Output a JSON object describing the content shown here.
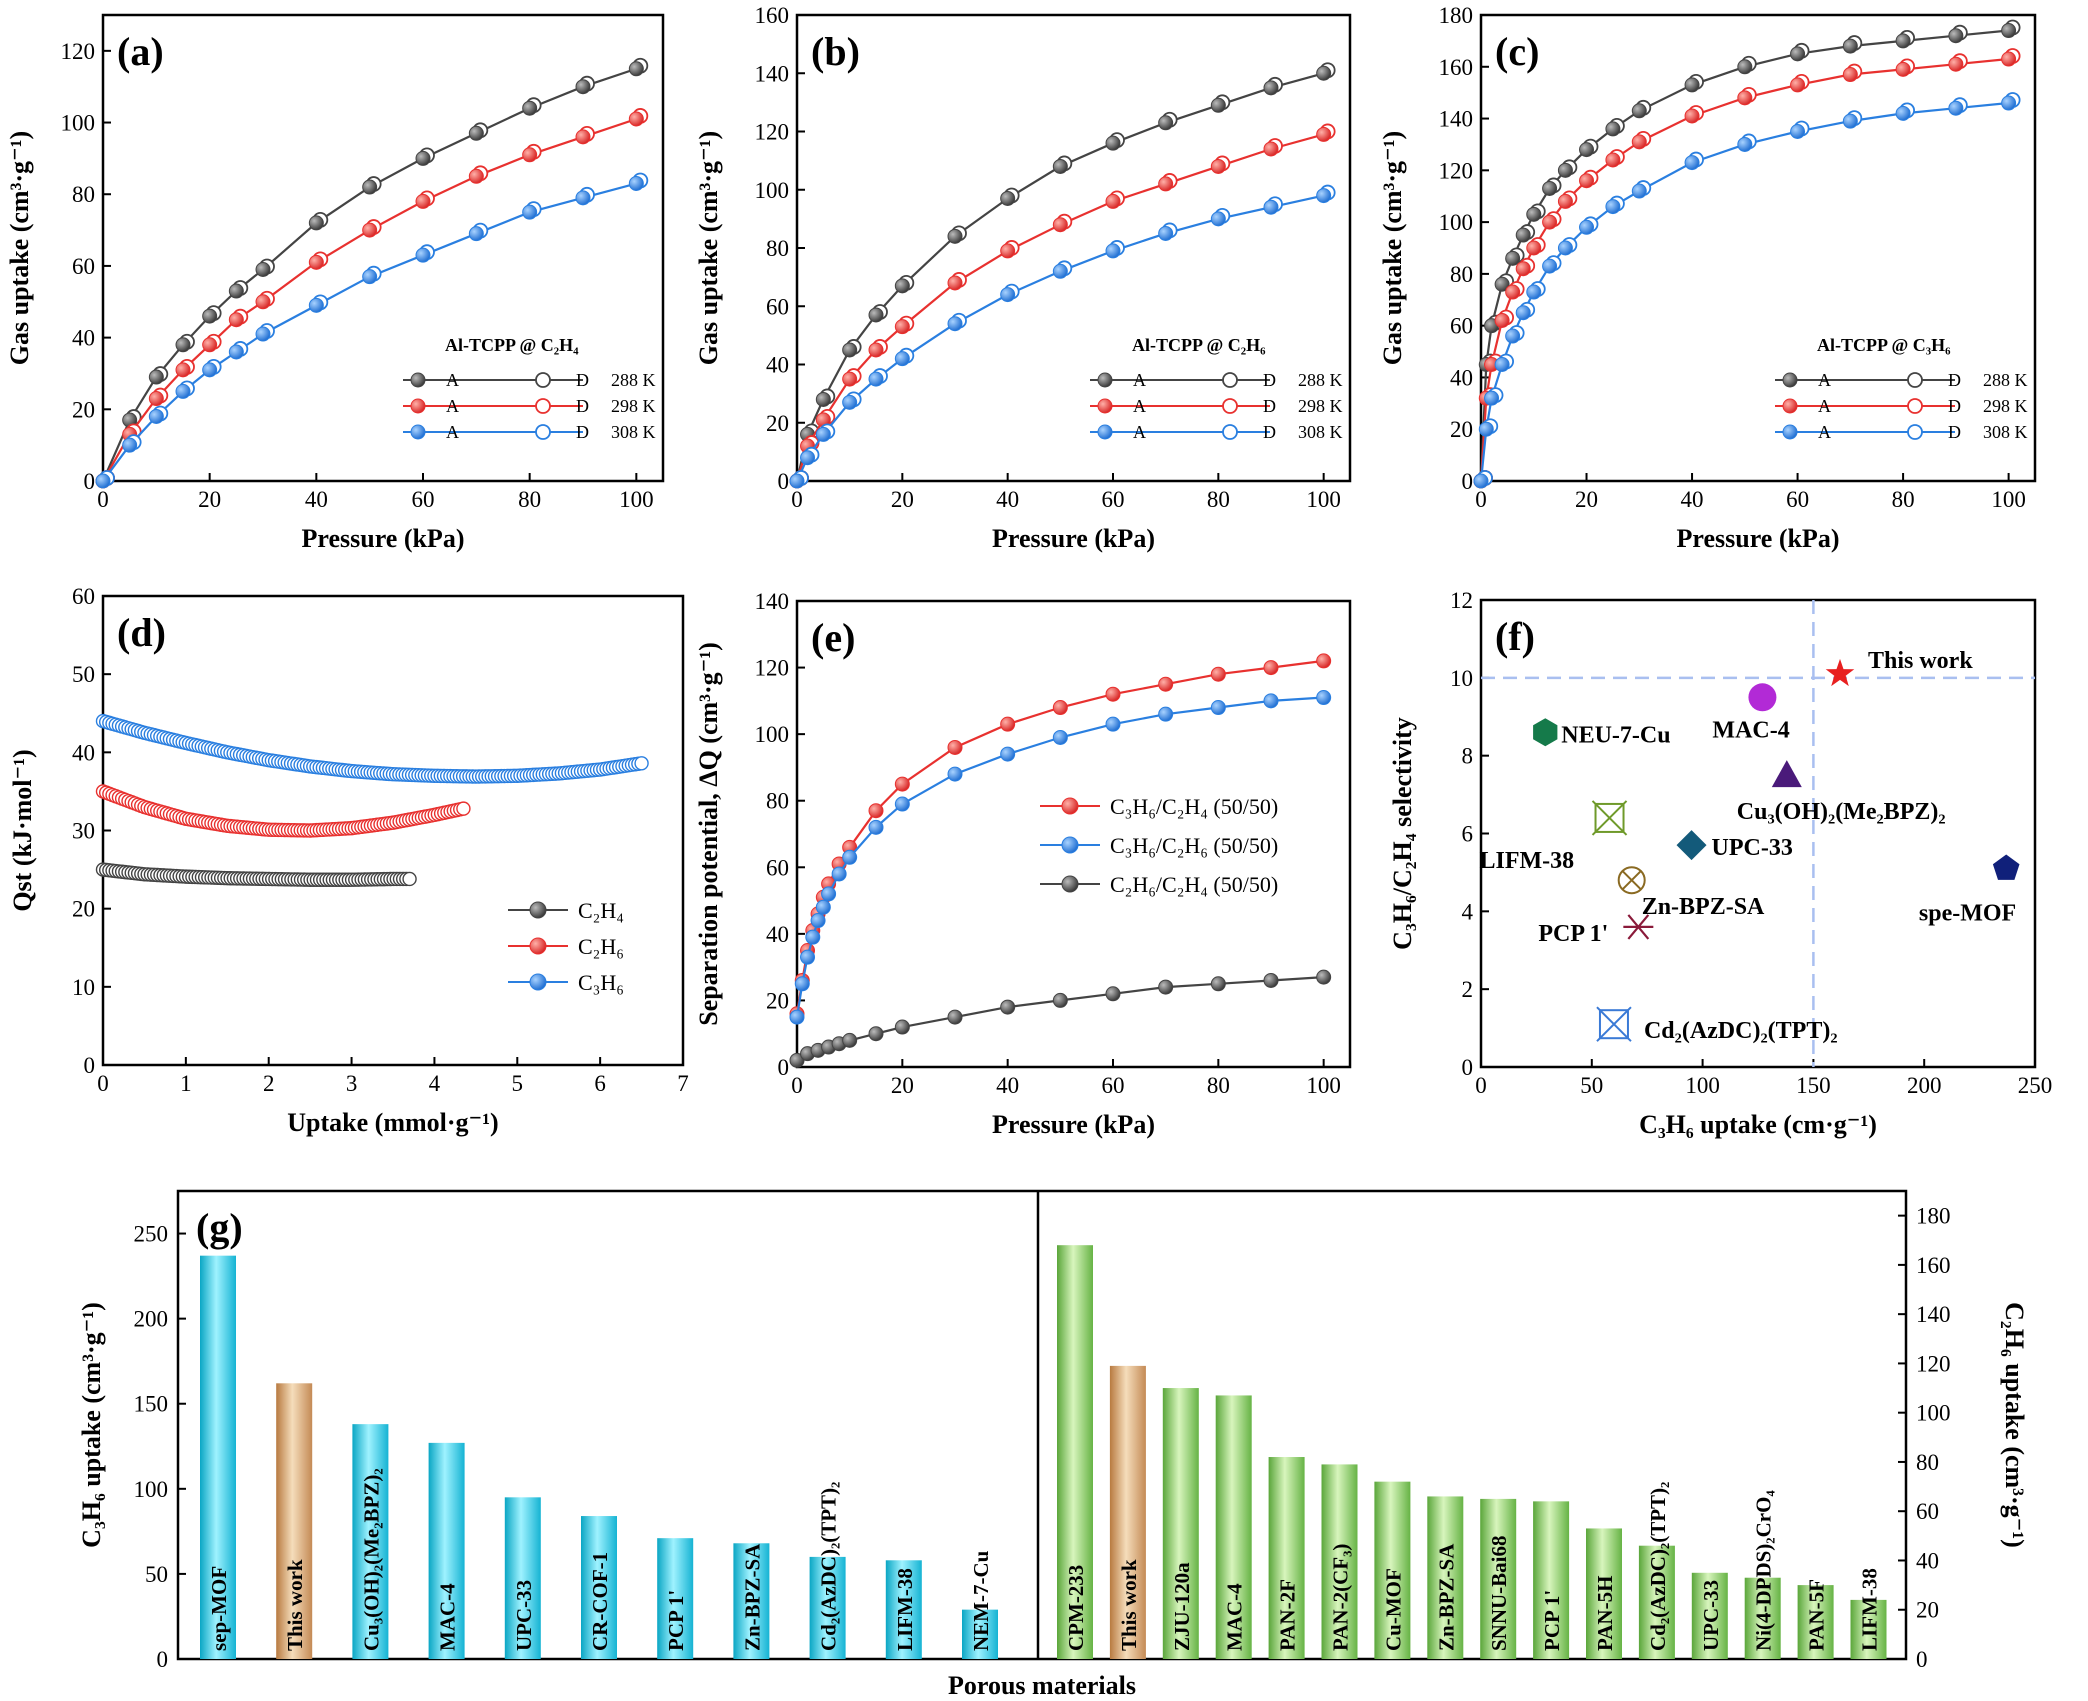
{
  "chart_data": [
    {
      "panel": "(a)",
      "type": "line",
      "xlabel": "Pressure (kPa)",
      "ylabel": "Gas uptake (cm³·g⁻¹)",
      "xlim": [
        0,
        105
      ],
      "ylim": [
        0,
        130
      ],
      "xticks": [
        0,
        20,
        40,
        60,
        80,
        100
      ],
      "yticks": [
        0,
        20,
        40,
        60,
        80,
        100,
        120
      ],
      "legend_title": "Al-TCPP @ C₂H₄",
      "legend_markers": [
        "A",
        "D"
      ],
      "series": [
        {
          "name": "288 K",
          "color": "#444444",
          "x": [
            0,
            5,
            10,
            15,
            20,
            25,
            30,
            40,
            50,
            60,
            70,
            80,
            90,
            100
          ],
          "y": [
            0,
            17,
            29,
            38,
            46,
            53,
            59,
            72,
            82,
            90,
            97,
            104,
            110,
            115
          ]
        },
        {
          "name": "298 K",
          "color": "#e8312f",
          "x": [
            0,
            5,
            10,
            15,
            20,
            25,
            30,
            40,
            50,
            60,
            70,
            80,
            90,
            100
          ],
          "y": [
            0,
            13,
            23,
            31,
            38,
            45,
            50,
            61,
            70,
            78,
            85,
            91,
            96,
            101
          ]
        },
        {
          "name": "308 K",
          "color": "#2a7fe0",
          "x": [
            0,
            5,
            10,
            15,
            20,
            25,
            30,
            40,
            50,
            60,
            70,
            80,
            90,
            100
          ],
          "y": [
            0,
            10,
            18,
            25,
            31,
            36,
            41,
            49,
            57,
            63,
            69,
            75,
            79,
            83
          ]
        }
      ]
    },
    {
      "panel": "(b)",
      "type": "line",
      "xlabel": "Pressure (kPa)",
      "ylabel": "Gas uptake (cm³·g⁻¹)",
      "xlim": [
        0,
        105
      ],
      "ylim": [
        0,
        160
      ],
      "xticks": [
        0,
        20,
        40,
        60,
        80,
        100
      ],
      "yticks": [
        0,
        20,
        40,
        60,
        80,
        100,
        120,
        140,
        160
      ],
      "legend_title": "Al-TCPP @ C₂H₆",
      "legend_markers": [
        "A",
        "D"
      ],
      "series": [
        {
          "name": "288 K",
          "color": "#444444",
          "x": [
            0,
            2,
            5,
            10,
            15,
            20,
            30,
            40,
            50,
            60,
            70,
            80,
            90,
            100
          ],
          "y": [
            0,
            16,
            28,
            45,
            57,
            67,
            84,
            97,
            108,
            116,
            123,
            129,
            135,
            140
          ]
        },
        {
          "name": "298 K",
          "color": "#e8312f",
          "x": [
            0,
            2,
            5,
            10,
            15,
            20,
            30,
            40,
            50,
            60,
            70,
            80,
            90,
            100
          ],
          "y": [
            0,
            12,
            21,
            35,
            45,
            53,
            68,
            79,
            88,
            96,
            102,
            108,
            114,
            119
          ]
        },
        {
          "name": "308 K",
          "color": "#2a7fe0",
          "x": [
            0,
            2,
            5,
            10,
            15,
            20,
            30,
            40,
            50,
            60,
            70,
            80,
            90,
            100
          ],
          "y": [
            0,
            8,
            16,
            27,
            35,
            42,
            54,
            64,
            72,
            79,
            85,
            90,
            94,
            98
          ]
        }
      ]
    },
    {
      "panel": "(c)",
      "type": "line",
      "xlabel": "Pressure (kPa)",
      "ylabel": "Gas uptake (cm³·g⁻¹)",
      "xlim": [
        0,
        105
      ],
      "ylim": [
        0,
        180
      ],
      "xticks": [
        0,
        20,
        40,
        60,
        80,
        100
      ],
      "yticks": [
        0,
        20,
        40,
        60,
        80,
        100,
        120,
        140,
        160,
        180
      ],
      "legend_title": "Al-TCPP @ C₃H₆",
      "legend_markers": [
        "A",
        "D"
      ],
      "series": [
        {
          "name": "288 K",
          "color": "#444444",
          "x": [
            0,
            1,
            2,
            4,
            6,
            8,
            10,
            13,
            16,
            20,
            25,
            30,
            40,
            50,
            60,
            70,
            80,
            90,
            100
          ],
          "y": [
            0,
            45,
            60,
            76,
            86,
            95,
            103,
            113,
            120,
            128,
            136,
            143,
            153,
            160,
            165,
            168,
            170,
            172,
            174
          ]
        },
        {
          "name": "298 K",
          "color": "#e8312f",
          "x": [
            0,
            1,
            2,
            4,
            6,
            8,
            10,
            13,
            16,
            20,
            25,
            30,
            40,
            50,
            60,
            70,
            80,
            90,
            100
          ],
          "y": [
            0,
            32,
            45,
            62,
            73,
            82,
            90,
            100,
            108,
            116,
            124,
            131,
            141,
            148,
            153,
            157,
            159,
            161,
            163
          ]
        },
        {
          "name": "308 K",
          "color": "#2a7fe0",
          "x": [
            0,
            1,
            2,
            4,
            6,
            8,
            10,
            13,
            16,
            20,
            25,
            30,
            40,
            50,
            60,
            70,
            80,
            90,
            100
          ],
          "y": [
            0,
            20,
            32,
            45,
            56,
            65,
            73,
            83,
            90,
            98,
            106,
            112,
            123,
            130,
            135,
            139,
            142,
            144,
            146
          ]
        }
      ]
    },
    {
      "panel": "(d)",
      "type": "line",
      "xlabel": "Uptake (mmol·g⁻¹)",
      "ylabel": "Qst (kJ·mol⁻¹)",
      "xlim": [
        0,
        7
      ],
      "ylim": [
        0,
        60
      ],
      "xticks": [
        0,
        1,
        2,
        3,
        4,
        5,
        6,
        7
      ],
      "yticks": [
        0,
        10,
        20,
        30,
        40,
        50,
        60
      ],
      "series": [
        {
          "name": "C₂H₄",
          "color": "#444444",
          "x": [
            0,
            0.5,
            1,
            1.5,
            2,
            2.5,
            3,
            3.5,
            3.7
          ],
          "y": [
            25,
            24.4,
            24.1,
            23.9,
            23.8,
            23.7,
            23.7,
            23.8,
            23.8
          ]
        },
        {
          "name": "C₂H₆",
          "color": "#e8312f",
          "x": [
            0,
            0.5,
            1,
            1.5,
            2,
            2.5,
            3,
            3.5,
            4,
            4.35
          ],
          "y": [
            35,
            33,
            31.5,
            30.6,
            30.1,
            30,
            30.3,
            31,
            32,
            32.8
          ]
        },
        {
          "name": "C₃H₆",
          "color": "#2a7fe0",
          "x": [
            0,
            0.5,
            1,
            1.5,
            2,
            2.5,
            3,
            3.5,
            4,
            4.5,
            5,
            5.5,
            6,
            6.5
          ],
          "y": [
            44,
            42.5,
            41.2,
            40,
            39,
            38.2,
            37.6,
            37.2,
            37,
            36.9,
            37,
            37.3,
            37.8,
            38.6
          ]
        }
      ]
    },
    {
      "panel": "(e)",
      "type": "line",
      "xlabel": "Pressure (kPa)",
      "ylabel": "Separation potential, ΔQ (cm³·g⁻¹)",
      "xlim": [
        0,
        105
      ],
      "ylim": [
        0,
        140
      ],
      "xticks": [
        0,
        20,
        40,
        60,
        80,
        100
      ],
      "yticks": [
        0,
        20,
        40,
        60,
        80,
        100,
        120,
        140
      ],
      "series": [
        {
          "name": "C₃H₆/C₂H₄ (50/50)",
          "color": "#e8312f",
          "x": [
            0,
            1,
            2,
            3,
            4,
            5,
            6,
            8,
            10,
            15,
            20,
            30,
            40,
            50,
            60,
            70,
            80,
            90,
            100
          ],
          "y": [
            16,
            26,
            35,
            41,
            46,
            51,
            55,
            61,
            66,
            77,
            85,
            96,
            103,
            108,
            112,
            115,
            118,
            120,
            122
          ]
        },
        {
          "name": "C₃H₆/C₂H₆ (50/50)",
          "color": "#2a7fe0",
          "x": [
            0,
            1,
            2,
            3,
            4,
            5,
            6,
            8,
            10,
            15,
            20,
            30,
            40,
            50,
            60,
            70,
            80,
            90,
            100
          ],
          "y": [
            15,
            25,
            33,
            39,
            44,
            48,
            52,
            58,
            63,
            72,
            79,
            88,
            94,
            99,
            103,
            106,
            108,
            110,
            111
          ]
        },
        {
          "name": "C₂H₆/C₂H₄ (50/50)",
          "color": "#444444",
          "x": [
            0,
            2,
            4,
            6,
            8,
            10,
            15,
            20,
            30,
            40,
            50,
            60,
            70,
            80,
            90,
            100
          ],
          "y": [
            2,
            4,
            5,
            6,
            7,
            8,
            10,
            12,
            15,
            18,
            20,
            22,
            24,
            25,
            26,
            27
          ]
        }
      ]
    },
    {
      "panel": "(f)",
      "type": "scatter",
      "xlabel": "C₃H₆ uptake (cm·g⁻¹)",
      "ylabel": "C₃H₆/C₂H₄ selectivity",
      "xlim": [
        0,
        250
      ],
      "ylim": [
        0,
        12
      ],
      "xticks": [
        0,
        50,
        100,
        150,
        200,
        250
      ],
      "yticks": [
        0,
        2,
        4,
        6,
        8,
        10,
        12
      ],
      "reference_lines": {
        "x": 150,
        "y": 10
      },
      "points": [
        {
          "label": "This work",
          "x": 162,
          "y": 10.1,
          "color": "#e82020",
          "marker": "star"
        },
        {
          "label": "MAC-4",
          "x": 127,
          "y": 9.5,
          "color": "#b22ad6",
          "marker": "circle"
        },
        {
          "label": "NEU-7-Cu",
          "x": 29,
          "y": 8.6,
          "color": "#157a4a",
          "marker": "hexagon"
        },
        {
          "label": "Cu₃(OH)₂(Me₂BPZ)₂",
          "x": 138,
          "y": 7.5,
          "color": "#4a1a7a",
          "marker": "triangle"
        },
        {
          "label": "LIFM-38",
          "x": 58,
          "y": 6.4,
          "color": "#6f9a2a",
          "marker": "cross-box"
        },
        {
          "label": "UPC-33",
          "x": 95,
          "y": 5.7,
          "color": "#135a7a",
          "marker": "diamond"
        },
        {
          "label": "Zn-BPZ-SA",
          "x": 68,
          "y": 4.8,
          "color": "#8a6a22",
          "marker": "circle-x"
        },
        {
          "label": "spe-MOF",
          "x": 237,
          "y": 5.1,
          "color": "#10207a",
          "marker": "pentagon"
        },
        {
          "label": "PCP 1'",
          "x": 71,
          "y": 3.6,
          "color": "#8a1a3a",
          "marker": "asterisk"
        },
        {
          "label": "Cd₂(AzDC)₂(TPT)₂",
          "x": 60,
          "y": 1.1,
          "color": "#3a7ad6",
          "marker": "x-box"
        }
      ]
    },
    {
      "panel": "(g)",
      "type": "bar",
      "xlabel": "Porous materials",
      "left": {
        "ylabel": "C₃H₆ uptake (cm³·g⁻¹)",
        "ylim": [
          0,
          275
        ],
        "yticks": [
          0,
          50,
          100,
          150,
          200,
          250
        ],
        "categories": [
          "sep-MOF",
          "This work",
          "Cu₃(OH)₂(Me₂BPZ)₂",
          "MAC-4",
          "UPC-33",
          "CR-COF-1",
          "PCP 1'",
          "Zn-BPZ-SA",
          "Cd₂(AzDC)₂(TPT)₂",
          "LIFM-38",
          "NEM-7-Cu"
        ],
        "values": [
          237,
          162,
          138,
          127,
          95,
          84,
          71,
          68,
          60,
          58,
          29
        ],
        "colors": [
          "cyan",
          "tan",
          "cyan",
          "cyan",
          "cyan",
          "cyan",
          "cyan",
          "cyan",
          "cyan",
          "cyan",
          "cyan"
        ]
      },
      "right": {
        "ylabel": "C₂H₆ uptake (cm³·g⁻¹)",
        "ylim": [
          0,
          190
        ],
        "yticks": [
          0,
          20,
          40,
          60,
          80,
          100,
          120,
          140,
          160,
          180
        ],
        "categories": [
          "CPM-233",
          "This work",
          "ZJU-120a",
          "MAC-4",
          "PAN-2F",
          "PAN-2(CF₃)",
          "Cu-MOF",
          "Zn-BPZ-SA",
          "SNNU-Bai68",
          "PCP 1'",
          "PAN-5H",
          "Cd₂(AzDC)₂(TPT)₂",
          "UPC-33",
          "Ni(4-DPDS)₂CrO₄",
          "PAN-5F",
          "LIFM-38"
        ],
        "values": [
          168,
          119,
          110,
          107,
          82,
          79,
          72,
          66,
          65,
          64,
          53,
          46,
          35,
          33,
          30,
          24
        ],
        "colors": [
          "green",
          "tan",
          "green",
          "green",
          "green",
          "green",
          "green",
          "green",
          "green",
          "green",
          "green",
          "green",
          "green",
          "green",
          "green",
          "green"
        ]
      }
    }
  ]
}
